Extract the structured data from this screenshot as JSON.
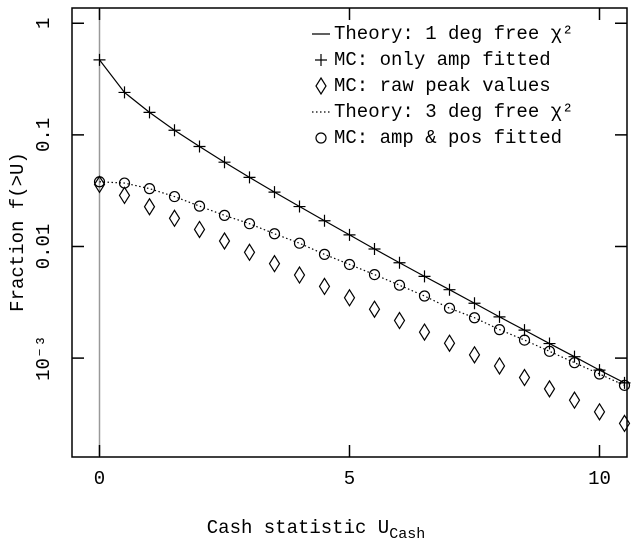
{
  "chart_data": {
    "type": "line",
    "xlabel": "Cash statistic U",
    "xlabel_sub": "Cash",
    "ylabel": "Fraction f(>U)",
    "log_y": true,
    "xlim": [
      -0.55,
      10.55
    ],
    "xticks": [
      0,
      5,
      10
    ],
    "ylim": [
      0.00013,
      1.37
    ],
    "yticks": [
      1,
      0.1,
      0.01,
      {
        "value": 0.001,
        "label": "10⁻³"
      }
    ],
    "legend": "top-right",
    "x": [
      0,
      0.5,
      1,
      1.5,
      2,
      2.5,
      3,
      3.5,
      4,
      4.5,
      5,
      5.5,
      6,
      6.5,
      7,
      7.5,
      8,
      8.5,
      9,
      9.5,
      10,
      10.5
    ],
    "series": [
      {
        "name": "Theory: 1 deg free χ²",
        "color": "#000000",
        "style": "solid",
        "values": [
          0.47,
          0.24,
          0.159,
          0.11,
          0.0787,
          0.0569,
          0.0416,
          0.0307,
          0.0228,
          0.017,
          0.0127,
          0.0095,
          0.00715,
          0.0054,
          0.0041,
          0.0031,
          0.00234,
          0.00178,
          0.00135,
          0.00103,
          0.00078,
          0.0006
        ]
      },
      {
        "name": "MC: only amp fitted",
        "color": "#000000",
        "style": "plus",
        "values": [
          0.47,
          0.24,
          0.159,
          0.11,
          0.0787,
          0.0569,
          0.0416,
          0.0307,
          0.0228,
          0.017,
          0.0127,
          0.0095,
          0.00715,
          0.0054,
          0.0041,
          0.0031,
          0.00234,
          0.00178,
          0.00135,
          0.00103,
          0.00078,
          0.0006
        ]
      },
      {
        "name": "MC: raw peak values",
        "color": "#000000",
        "style": "diamond",
        "values": [
          0.036,
          0.0287,
          0.0227,
          0.0179,
          0.0142,
          0.0112,
          0.00887,
          0.00702,
          0.00555,
          0.00439,
          0.00347,
          0.00274,
          0.00217,
          0.00171,
          0.00136,
          0.00107,
          0.00085,
          0.00067,
          0.00053,
          0.00042,
          0.00033,
          0.00026
        ]
      },
      {
        "name": "Theory: 3 deg free χ²",
        "color": "#000000",
        "style": "dotted",
        "values": [
          0.038,
          0.037,
          0.033,
          0.028,
          0.023,
          0.019,
          0.016,
          0.013,
          0.0107,
          0.0085,
          0.0069,
          0.0056,
          0.0045,
          0.0036,
          0.0028,
          0.0023,
          0.0018,
          0.00145,
          0.00115,
          0.00091,
          0.00072,
          0.00057
        ]
      },
      {
        "name": "MC: amp & pos fitted",
        "color": "#000000",
        "style": "circle",
        "values": [
          0.038,
          0.037,
          0.033,
          0.028,
          0.023,
          0.019,
          0.016,
          0.013,
          0.0107,
          0.0085,
          0.0069,
          0.0056,
          0.0045,
          0.0036,
          0.0028,
          0.0023,
          0.0018,
          0.00145,
          0.00115,
          0.00091,
          0.00072,
          0.00057
        ]
      }
    ]
  }
}
